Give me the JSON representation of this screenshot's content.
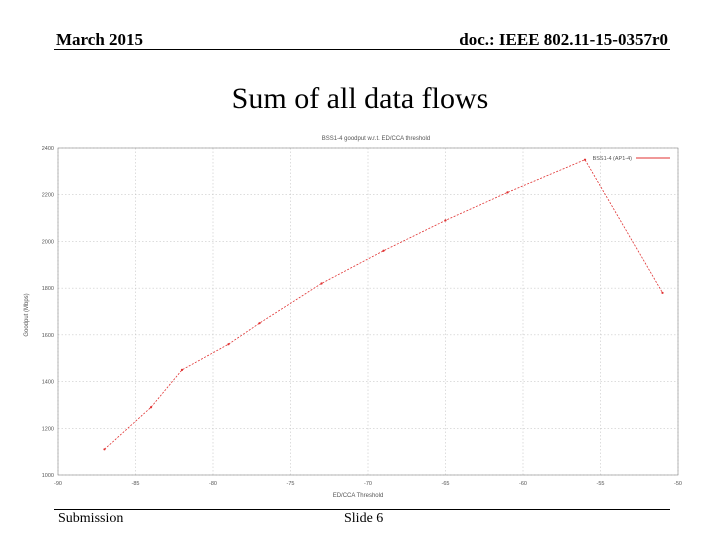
{
  "header": {
    "date": "March 2015",
    "doc_id": "doc.: IEEE 802.11-15-0357r0"
  },
  "slide_title": "Sum of all data flows",
  "footer": {
    "left": "Submission",
    "center": "Slide 6"
  },
  "chart_data": {
    "type": "line",
    "title": "BSS1-4 goodput w.r.t. ED/CCA threshold",
    "xlabel": "ED/CCA Threshold",
    "ylabel": "Goodput (Mbps)",
    "xlim": [
      -90,
      -50
    ],
    "ylim": [
      1000,
      2400
    ],
    "xticks": [
      -90,
      -85,
      -80,
      -75,
      -70,
      -65,
      -60,
      -55,
      -50
    ],
    "yticks": [
      1000,
      1200,
      1400,
      1600,
      1800,
      2000,
      2200,
      2400
    ],
    "grid": true,
    "legend_position": "top-right",
    "series": [
      {
        "name": "BSS1-4 (AP1-4)",
        "color": "#e03030",
        "x": [
          -87,
          -84,
          -82,
          -79,
          -77,
          -73,
          -69,
          -65,
          -61,
          -56,
          -51
        ],
        "y": [
          1110,
          1290,
          1450,
          1560,
          1650,
          1820,
          1960,
          2090,
          2210,
          2350,
          1780
        ]
      }
    ]
  }
}
